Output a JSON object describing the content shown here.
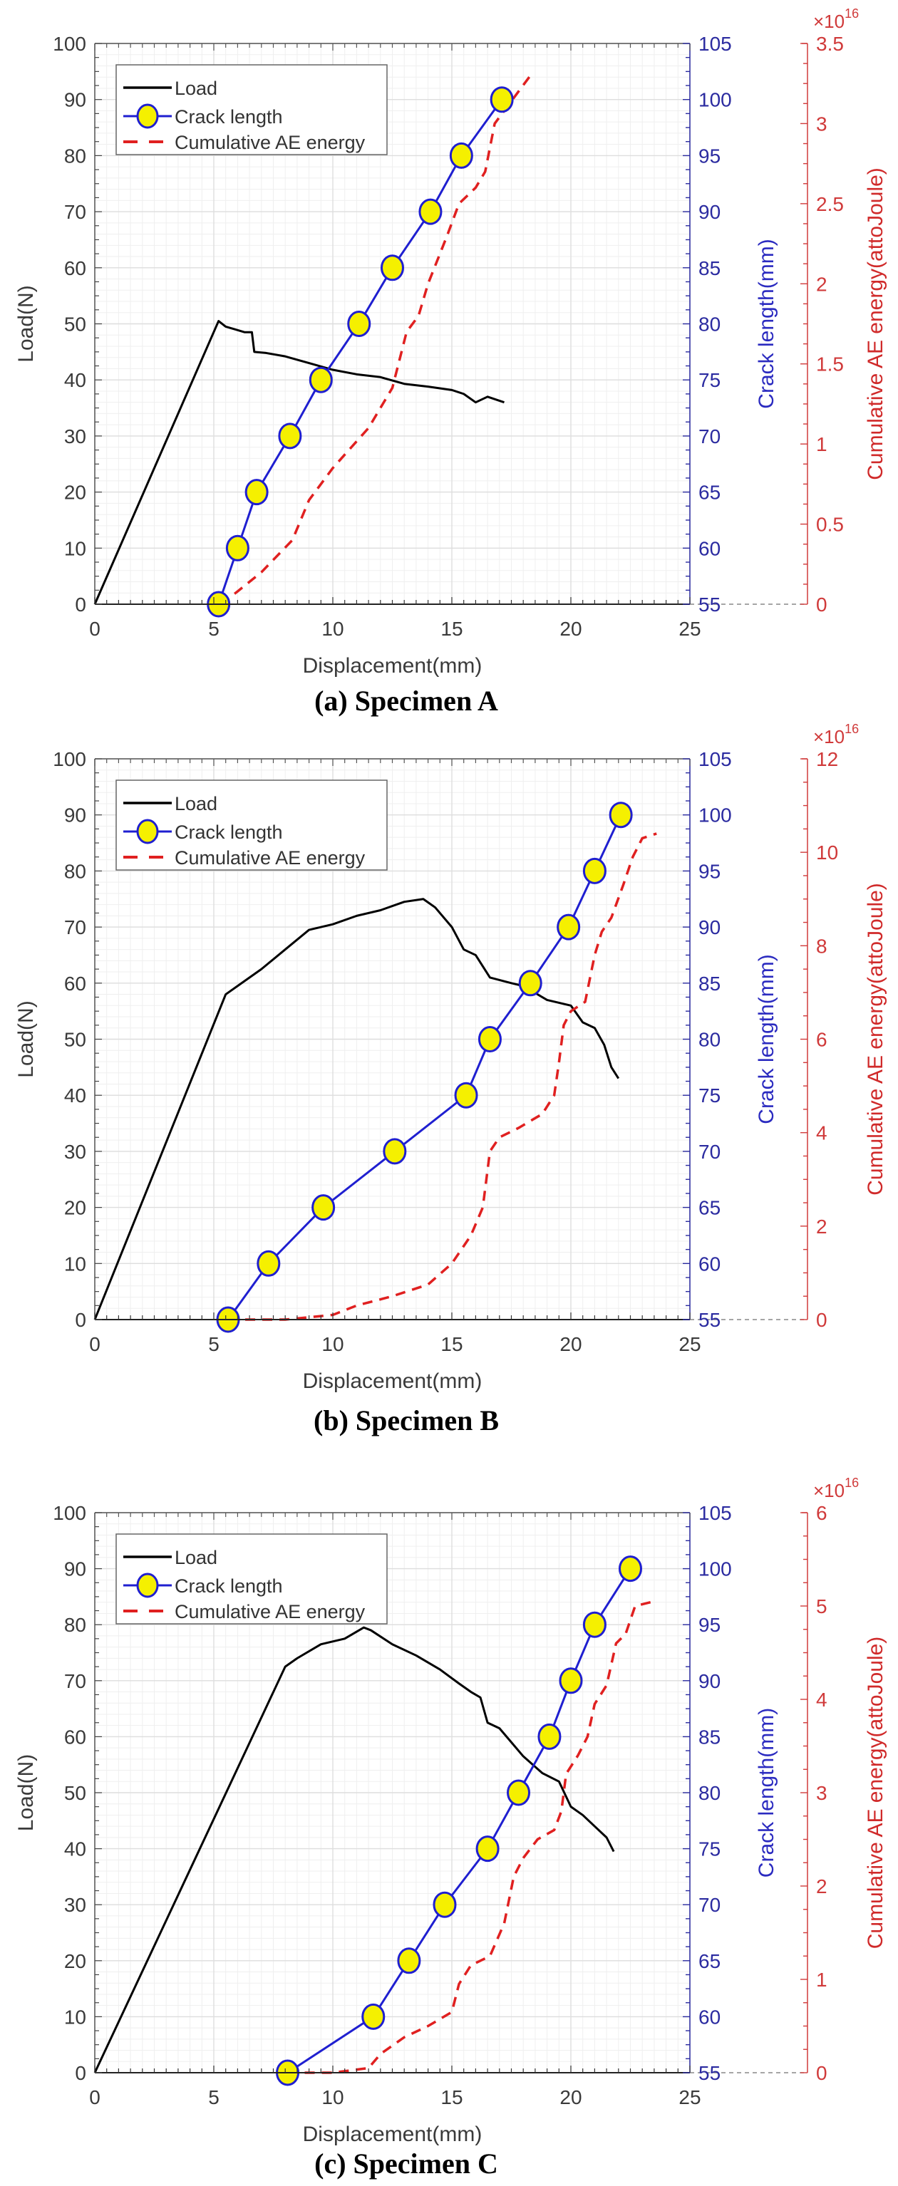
{
  "chart_data": [
    {
      "type": "line",
      "panel_id": "a",
      "caption": "(a) Specimen A",
      "xlabel": "Displacement(mm)",
      "ylabel": "Load(N)",
      "y2label": "Crack length(mm)",
      "y3label": "Cumulative AE energy(attoJoule)",
      "y3_multiplier": "×10",
      "y3_exponent": "16",
      "xlim": [
        0,
        25
      ],
      "ylim": [
        0,
        100
      ],
      "y2lim": [
        55,
        105
      ],
      "y3lim": [
        0,
        3.5
      ],
      "xticks": [
        "0",
        "5",
        "10",
        "15",
        "20",
        "25"
      ],
      "yticks": [
        "0",
        "10",
        "20",
        "30",
        "40",
        "50",
        "60",
        "70",
        "80",
        "90",
        "100"
      ],
      "y2ticks": [
        "55",
        "60",
        "65",
        "70",
        "75",
        "80",
        "85",
        "90",
        "95",
        "100",
        "105"
      ],
      "y3ticks": [
        "0",
        "0.5",
        "1",
        "1.5",
        "2",
        "2.5",
        "3",
        "3.5"
      ],
      "grid": true,
      "legend": {
        "placement": "top-left",
        "entries": [
          "Load",
          "Crack length",
          "Cumulative AE energy"
        ]
      },
      "series": [
        {
          "name": "Load",
          "axis": "left",
          "color": "#000000",
          "x": [
            0,
            5.2,
            5.5,
            5.9,
            6.3,
            6.6,
            6.7,
            7.2,
            8.0,
            9.0,
            10.0,
            11.0,
            12.0,
            13.0,
            14.0,
            15.0,
            15.5,
            16.0,
            16.5,
            17.2
          ],
          "y": [
            0,
            50.5,
            49.5,
            49,
            48.5,
            48.5,
            45,
            44.8,
            44.2,
            43,
            41.8,
            41,
            40.5,
            39.3,
            38.8,
            38.2,
            37.5,
            36,
            37,
            36
          ]
        },
        {
          "name": "Crack length",
          "axis": "right-blue",
          "color": "#1f1fd0",
          "marker_fill": "#f5f000",
          "x": [
            5.2,
            6.0,
            6.8,
            8.2,
            9.5,
            11.1,
            12.5,
            14.1,
            15.4,
            17.1
          ],
          "y": [
            55,
            60,
            65,
            70,
            75,
            80,
            85,
            90,
            95,
            100
          ]
        },
        {
          "name": "Cumulative AE energy",
          "axis": "right-red",
          "color": "#e02020",
          "unit_multiplier": "1e16",
          "x": [
            5.3,
            6.0,
            7.0,
            8.3,
            9.0,
            10.0,
            11.5,
            12.5,
            13.1,
            13.6,
            14.0,
            14.8,
            15.3,
            16.0,
            16.4,
            16.8,
            17.3,
            17.8,
            18.3
          ],
          "y": [
            0,
            0.08,
            0.2,
            0.4,
            0.65,
            0.85,
            1.1,
            1.35,
            1.7,
            1.8,
            2.0,
            2.3,
            2.5,
            2.6,
            2.7,
            3.0,
            3.1,
            3.2,
            3.3
          ]
        }
      ]
    },
    {
      "type": "line",
      "panel_id": "b",
      "caption": "(b) Specimen B",
      "xlabel": "Displacement(mm)",
      "ylabel": "Load(N)",
      "y2label": "Crack length(mm)",
      "y3label": "Cumulative AE energy(attoJoule)",
      "y3_multiplier": "×10",
      "y3_exponent": "16",
      "xlim": [
        0,
        25
      ],
      "ylim": [
        0,
        100
      ],
      "y2lim": [
        55,
        105
      ],
      "y3lim": [
        0,
        12
      ],
      "xticks": [
        "0",
        "5",
        "10",
        "15",
        "20",
        "25"
      ],
      "yticks": [
        "0",
        "10",
        "20",
        "30",
        "40",
        "50",
        "60",
        "70",
        "80",
        "90",
        "100"
      ],
      "y2ticks": [
        "55",
        "60",
        "65",
        "70",
        "75",
        "80",
        "85",
        "90",
        "95",
        "100",
        "105"
      ],
      "y3ticks": [
        "0",
        "2",
        "4",
        "6",
        "8",
        "10",
        "12"
      ],
      "grid": true,
      "legend": {
        "placement": "top-left",
        "entries": [
          "Load",
          "Crack length",
          "Cumulative AE energy"
        ]
      },
      "series": [
        {
          "name": "Load",
          "axis": "left",
          "color": "#000000",
          "x": [
            0,
            5.5,
            6.0,
            7.0,
            8.0,
            9.0,
            10.0,
            11.0,
            12.0,
            13.0,
            13.8,
            14.3,
            15.0,
            15.5,
            16.0,
            16.6,
            17.5,
            18.0,
            19.0,
            20.0,
            20.5,
            21.0,
            21.4,
            21.7,
            22.0
          ],
          "y": [
            0,
            58,
            59.5,
            62.5,
            66,
            69.5,
            70.5,
            72,
            73,
            74.5,
            75,
            73.5,
            70,
            66,
            65,
            61,
            60,
            59.5,
            57,
            56,
            53,
            52,
            49,
            45,
            43
          ]
        },
        {
          "name": "Crack length",
          "axis": "right-blue",
          "color": "#1f1fd0",
          "marker_fill": "#f5f000",
          "x": [
            5.6,
            7.3,
            9.6,
            12.6,
            15.6,
            16.6,
            18.3,
            19.9,
            21.0,
            22.1
          ],
          "y": [
            55,
            60,
            65,
            70,
            75,
            80,
            85,
            90,
            95,
            100
          ]
        },
        {
          "name": "Cumulative AE energy",
          "axis": "right-red",
          "color": "#e02020",
          "unit_multiplier": "1e16",
          "x": [
            5.6,
            8.0,
            10.0,
            11.0,
            12.5,
            14.0,
            15.0,
            15.8,
            16.3,
            16.6,
            17.0,
            17.8,
            18.8,
            19.3,
            19.5,
            19.7,
            20.0,
            20.6,
            21.0,
            21.3,
            21.7,
            22.2,
            22.6,
            23.0,
            23.6
          ],
          "y": [
            0,
            0,
            0.1,
            0.3,
            0.5,
            0.75,
            1.2,
            1.8,
            2.4,
            3.6,
            3.9,
            4.1,
            4.4,
            4.8,
            5.5,
            6.3,
            6.6,
            6.8,
            7.8,
            8.3,
            8.6,
            9.3,
            9.9,
            10.3,
            10.4
          ]
        }
      ]
    },
    {
      "type": "line",
      "panel_id": "c",
      "caption": "(c) Specimen C",
      "xlabel": "Displacement(mm)",
      "ylabel": "Load(N)",
      "y2label": "Crack length(mm)",
      "y3label": "Cumulative AE energy(attoJoule)",
      "y3_multiplier": "×10",
      "y3_exponent": "16",
      "xlim": [
        0,
        25
      ],
      "ylim": [
        0,
        100
      ],
      "y2lim": [
        55,
        105
      ],
      "y3lim": [
        0,
        6
      ],
      "xticks": [
        "0",
        "5",
        "10",
        "15",
        "20",
        "25"
      ],
      "yticks": [
        "0",
        "10",
        "20",
        "30",
        "40",
        "50",
        "60",
        "70",
        "80",
        "90",
        "100"
      ],
      "y2ticks": [
        "55",
        "60",
        "65",
        "70",
        "75",
        "80",
        "85",
        "90",
        "95",
        "100",
        "105"
      ],
      "y3ticks": [
        "0",
        "1",
        "2",
        "3",
        "4",
        "5",
        "6"
      ],
      "grid": true,
      "legend": {
        "placement": "top-left",
        "entries": [
          "Load",
          "Crack length",
          "Cumulative AE energy"
        ]
      },
      "series": [
        {
          "name": "Load",
          "axis": "left",
          "color": "#000000",
          "x": [
            0,
            8.0,
            8.5,
            9.5,
            10.5,
            11.3,
            11.6,
            12.5,
            13.5,
            14.5,
            15.3,
            15.8,
            16.2,
            16.5,
            17.0,
            17.5,
            18.0,
            18.8,
            19.5,
            20.0,
            20.5,
            21.0,
            21.5,
            21.8
          ],
          "y": [
            0,
            72.5,
            74,
            76.5,
            77.5,
            79.5,
            79,
            76.5,
            74.5,
            72,
            69.5,
            68,
            67,
            62.5,
            61.5,
            59,
            56.5,
            53.5,
            52,
            47.5,
            46,
            44,
            42,
            39.5
          ]
        },
        {
          "name": "Crack length",
          "axis": "right-blue",
          "color": "#1f1fd0",
          "marker_fill": "#f5f000",
          "x": [
            8.1,
            11.7,
            13.2,
            14.7,
            16.5,
            17.8,
            19.1,
            20.0,
            21.0,
            22.5
          ],
          "y": [
            55,
            60,
            65,
            70,
            75,
            80,
            85,
            90,
            95,
            100
          ]
        },
        {
          "name": "Cumulative AE energy",
          "axis": "right-red",
          "color": "#e02020",
          "unit_multiplier": "1e16",
          "x": [
            8.1,
            10.0,
            11.5,
            12.0,
            13.0,
            14.0,
            15.0,
            15.3,
            15.8,
            16.6,
            17.2,
            17.6,
            18.0,
            18.6,
            19.3,
            19.6,
            19.8,
            20.3,
            20.7,
            21.0,
            21.5,
            21.9,
            22.3,
            22.7,
            23.5
          ],
          "y": [
            0,
            0,
            0.05,
            0.2,
            0.38,
            0.5,
            0.65,
            0.95,
            1.15,
            1.25,
            1.6,
            2.1,
            2.3,
            2.5,
            2.6,
            2.8,
            3.2,
            3.4,
            3.6,
            3.95,
            4.15,
            4.6,
            4.7,
            5.0,
            5.05
          ]
        }
      ]
    }
  ]
}
